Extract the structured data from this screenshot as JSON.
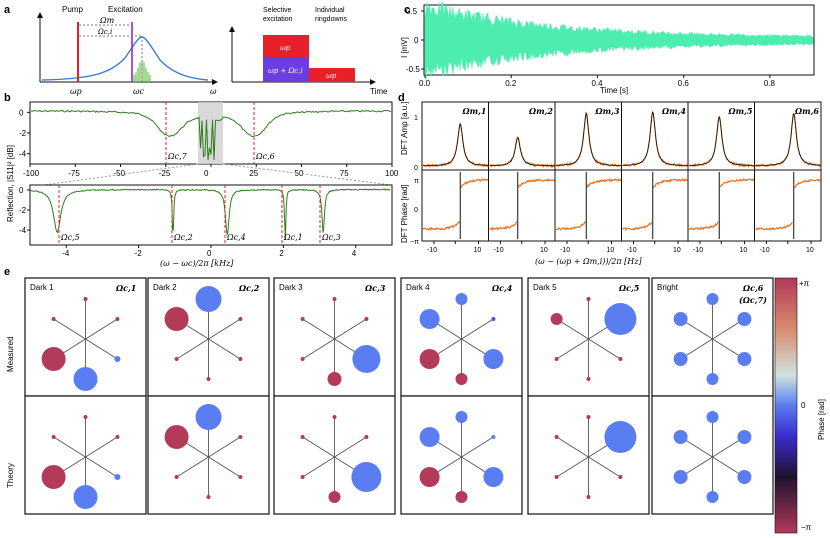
{
  "panels": {
    "a": "a",
    "b": "b",
    "c": "c",
    "d": "d",
    "e": "e"
  },
  "a": {
    "pump_label": "Pump",
    "excitation_label": "Excitation",
    "omega_m": "Ωm",
    "omega_ci": "Ωc,i",
    "omega_p": "ωp",
    "omega_c": "ωc",
    "omega_axis": "ω",
    "selective_label": "Selective",
    "selective_label2": "excitation",
    "individual_label": "Individual",
    "individual_label2": "ringdowns",
    "box_wp": "ωp",
    "box_wp_omega": "ωp + Ωc,i",
    "box_wp2": "ωp",
    "time_axis": "Time",
    "colors": {
      "pump": "#e8202a",
      "cavity": "#3a7fd5",
      "excitation": "#8a2be2",
      "spikes": "#6cc24a"
    }
  },
  "b": {
    "ylabel": "Reflection, |S11|² [dB]",
    "top_xticks": [
      "-100",
      "-75",
      "-50",
      "-25",
      "0",
      "25",
      "50",
      "75",
      "100"
    ],
    "top_yticks": [
      "0",
      "-2",
      "-4"
    ],
    "bottom_xticks": [
      "-4",
      "-2",
      "0",
      "2",
      "4"
    ],
    "bottom_yticks": [
      "0",
      "-2",
      "-4"
    ],
    "xlabel": "(ω − ωc)/2π [kHz]",
    "top_mode_labels": [
      "Ωc,7",
      "Ωc,6"
    ],
    "bottom_mode_labels": [
      "Ωc,5",
      "Ωc,2",
      "Ωc,4",
      "Ωc,1",
      "Ωc,3"
    ],
    "trace_color": "#2e7d1e"
  },
  "c": {
    "ylabel": "I [mV]",
    "xlabel": "Time [s]",
    "xticks": [
      "0.0",
      "0.2",
      "0.4",
      "0.6",
      "0.8"
    ],
    "yticks": [
      "0.5",
      "0",
      "-0.5"
    ],
    "trace_color": "#4dedb0"
  },
  "d": {
    "amp_ylabel": "DFT Amp [a.u.]",
    "phase_ylabel": "DFT Phase [rad]",
    "amp_yticks": [
      "1",
      "0"
    ],
    "phase_yticks": [
      "π",
      "0",
      "−π"
    ],
    "xticks": [
      "-10",
      "0",
      "10"
    ],
    "xlabel": "(ω − (ωp + Ωm,i))/2π [Hz]",
    "mode_titles": [
      "Ωm,1",
      "Ωm,2",
      "Ωm,3",
      "Ωm,4",
      "Ωm,5",
      "Ωm,6"
    ],
    "data_color": "#e8741e",
    "fit_color": "#111111"
  },
  "e": {
    "row_labels": [
      "Measured",
      "Theory"
    ],
    "columns": [
      {
        "name": "Dark 1",
        "mode": "Ωc,1"
      },
      {
        "name": "Dark 2",
        "mode": "Ωc,2"
      },
      {
        "name": "Dark 3",
        "mode": "Ωc,3"
      },
      {
        "name": "Dark 4",
        "mode": "Ωc,4"
      },
      {
        "name": "Dark 5",
        "mode": "Ωc,5"
      },
      {
        "name": "Bright",
        "mode": "Ωc,6",
        "mode2": "(Ωc,7)"
      }
    ],
    "colorbar": {
      "label": "Phase [rad]",
      "top": "+π",
      "mid": "0",
      "bottom": "−π"
    }
  }
}
